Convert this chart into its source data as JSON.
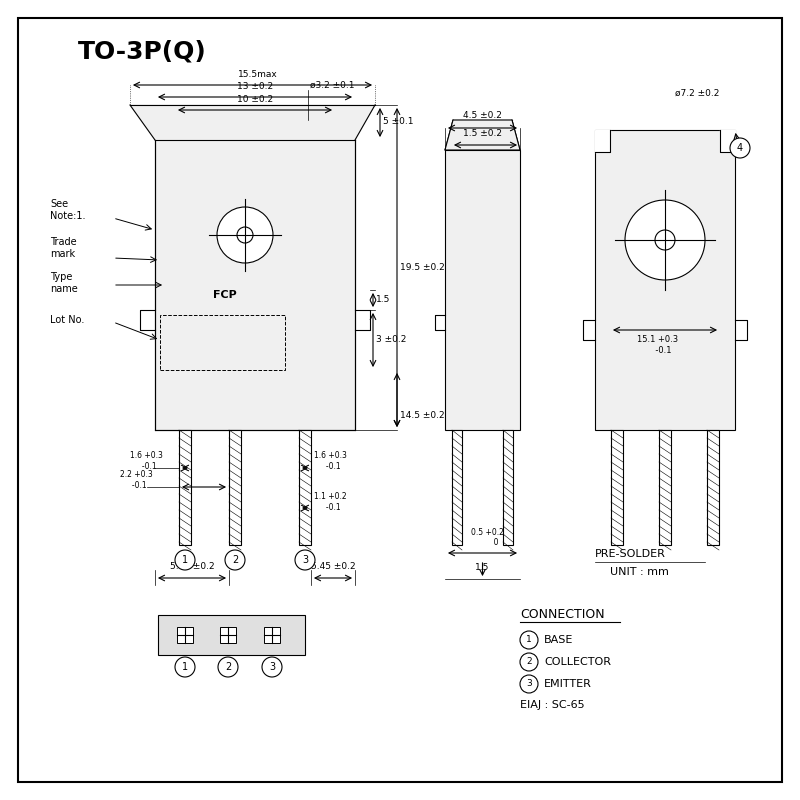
{
  "title": "TO-3P(Q)",
  "bg_color": "#ffffff",
  "border_color": "#000000",
  "line_color": "#000000",
  "text_color": "#000000",
  "unit_text": "UNIT : mm",
  "presolder_text": "PRE-SOLDER",
  "connection_title": "CONNECTION",
  "connections": [
    "BASE",
    "COLLECTOR",
    "EMITTER"
  ],
  "eiaj_text": "EIAJ : SC-65",
  "annotations": [
    "See\nNote:1.",
    "Trade\nmark",
    "Type\nname",
    "Lot No."
  ]
}
